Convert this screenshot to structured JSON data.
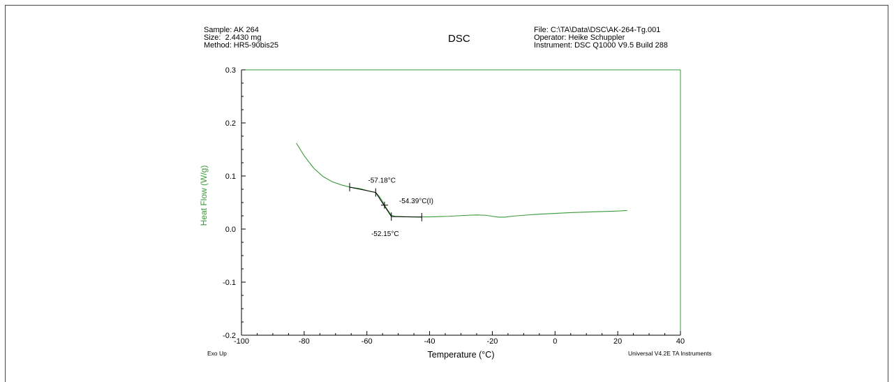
{
  "header": {
    "sample": "Sample: AK 264",
    "size": "Size:  2.4430 mg",
    "method": "Method: HR5-90bis25",
    "file": "File: C:\\TA\\Data\\DSC\\AK-264-Tg.001",
    "operator": "Operator: Heike Schuppler",
    "instrument": "Instrument: DSC Q1000 V9.5 Build 288"
  },
  "footer": {
    "exo": "Exo Up",
    "software": "Universal V4.2E TA Instruments"
  },
  "colors": {
    "curve": "#3a9a3a",
    "axis_right": "#3a9a3a",
    "analysis": "#000000"
  },
  "chart_data": {
    "type": "line",
    "title": "DSC",
    "xlabel": "Temperature (°C)",
    "ylabel": "Heat Flow (W/g)",
    "xlim": [
      -100,
      40
    ],
    "ylim": [
      -0.2,
      0.3
    ],
    "xticks": [
      -100,
      -80,
      -60,
      -40,
      -20,
      0,
      20,
      40
    ],
    "yticks": [
      -0.2,
      -0.1,
      0.0,
      0.1,
      0.2,
      0.3
    ],
    "xtick_labels": [
      "-100",
      "-80",
      "-60",
      "-40",
      "-20",
      "0",
      "20",
      "40"
    ],
    "ytick_labels": [
      "-0.2",
      "-0.1",
      "0.0",
      "0.1",
      "0.2",
      "0.3"
    ],
    "series": [
      {
        "x": [
          -82.5,
          -80,
          -77,
          -74,
          -71,
          -68,
          -65.5,
          -62,
          -59,
          -57.2,
          -56,
          -55,
          -54.4,
          -53.5,
          -52.2,
          -51,
          -49,
          -46,
          -43,
          -40,
          -37,
          -34,
          -31,
          -28,
          -25,
          -22,
          -20,
          -18,
          -16,
          -14,
          -10,
          -5,
          0,
          5,
          10,
          15,
          20,
          23
        ],
        "y": [
          0.162,
          0.138,
          0.115,
          0.099,
          0.089,
          0.083,
          0.079,
          0.076,
          0.071,
          0.069,
          0.061,
          0.052,
          0.045,
          0.037,
          0.026,
          0.024,
          0.0235,
          0.023,
          0.023,
          0.023,
          0.0235,
          0.024,
          0.025,
          0.026,
          0.0265,
          0.026,
          0.024,
          0.0225,
          0.0225,
          0.024,
          0.026,
          0.028,
          0.0295,
          0.031,
          0.032,
          0.033,
          0.034,
          0.035
        ]
      }
    ],
    "analysis_lines": [
      {
        "x": [
          -65.5,
          -57.2
        ],
        "y": [
          0.079,
          0.069
        ]
      },
      {
        "x": [
          -57.2,
          -52.2
        ],
        "y": [
          0.069,
          0.0235
        ]
      },
      {
        "x": [
          -52.2,
          -42.5
        ],
        "y": [
          0.0235,
          0.0225
        ]
      }
    ],
    "analysis_markers": [
      {
        "x": -65.5,
        "y": 0.079,
        "kind": "tick"
      },
      {
        "x": -57.2,
        "y": 0.069,
        "kind": "tick"
      },
      {
        "x": -54.39,
        "y": 0.045,
        "kind": "cross"
      },
      {
        "x": -52.2,
        "y": 0.0235,
        "kind": "tick"
      },
      {
        "x": -42.5,
        "y": 0.0225,
        "kind": "tick"
      }
    ],
    "annotations": [
      {
        "text": "-57.18°C",
        "x": -57.18,
        "y": 0.069
      },
      {
        "text": "-54.39°C(I)",
        "x": -54.39,
        "y": 0.045
      },
      {
        "text": "-52.15°C",
        "x": -52.15,
        "y": 0.0235
      }
    ]
  }
}
